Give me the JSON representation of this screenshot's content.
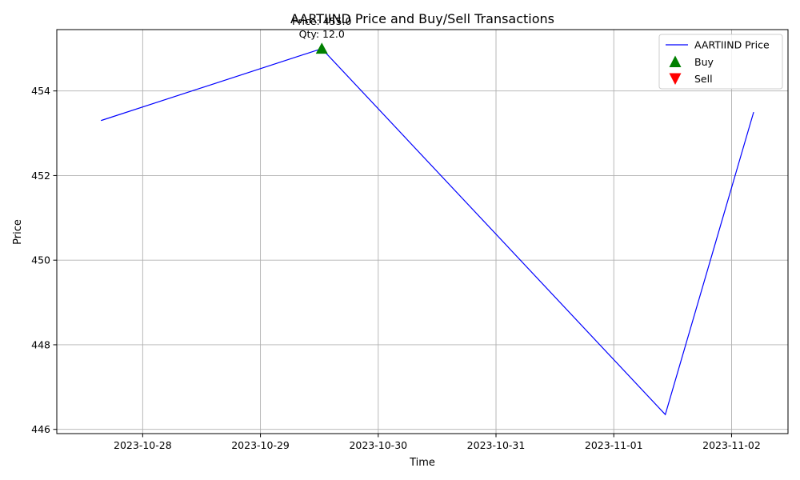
{
  "chart_data": {
    "type": "line",
    "title": "AARTIIND Price and Buy/Sell Transactions",
    "xlabel": "Time",
    "ylabel": "Price",
    "x_tick_labels": [
      "2023-10-28",
      "2023-10-29",
      "2023-10-30",
      "2023-10-31",
      "2023-11-01",
      "2023-11-02"
    ],
    "y_ticks": [
      446,
      448,
      450,
      452,
      454
    ],
    "xlim": [
      "2023-10-27 06:30",
      "2023-11-02 11:30"
    ],
    "ylim": [
      445.9,
      455.45
    ],
    "grid": true,
    "legend_position": "top-right",
    "series": [
      {
        "name": "AARTIIND Price",
        "color": "#0000ff",
        "points": [
          {
            "t": "2023-10-27 15:30",
            "v": 453.3
          },
          {
            "t": "2023-10-29 12:30",
            "v": 455.0
          },
          {
            "t": "2023-11-01 10:30",
            "v": 446.35
          },
          {
            "t": "2023-11-02 04:30",
            "v": 453.5
          }
        ]
      }
    ],
    "transactions": {
      "buy": {
        "name": "Buy",
        "color": "#008000",
        "points": [
          {
            "t": "2023-10-29 12:30",
            "v": 455.0,
            "label_price": "Price: 455.0",
            "label_qty": "Qty: 12.0"
          }
        ]
      },
      "sell": {
        "name": "Sell",
        "color": "#ff0000",
        "points": []
      }
    }
  }
}
